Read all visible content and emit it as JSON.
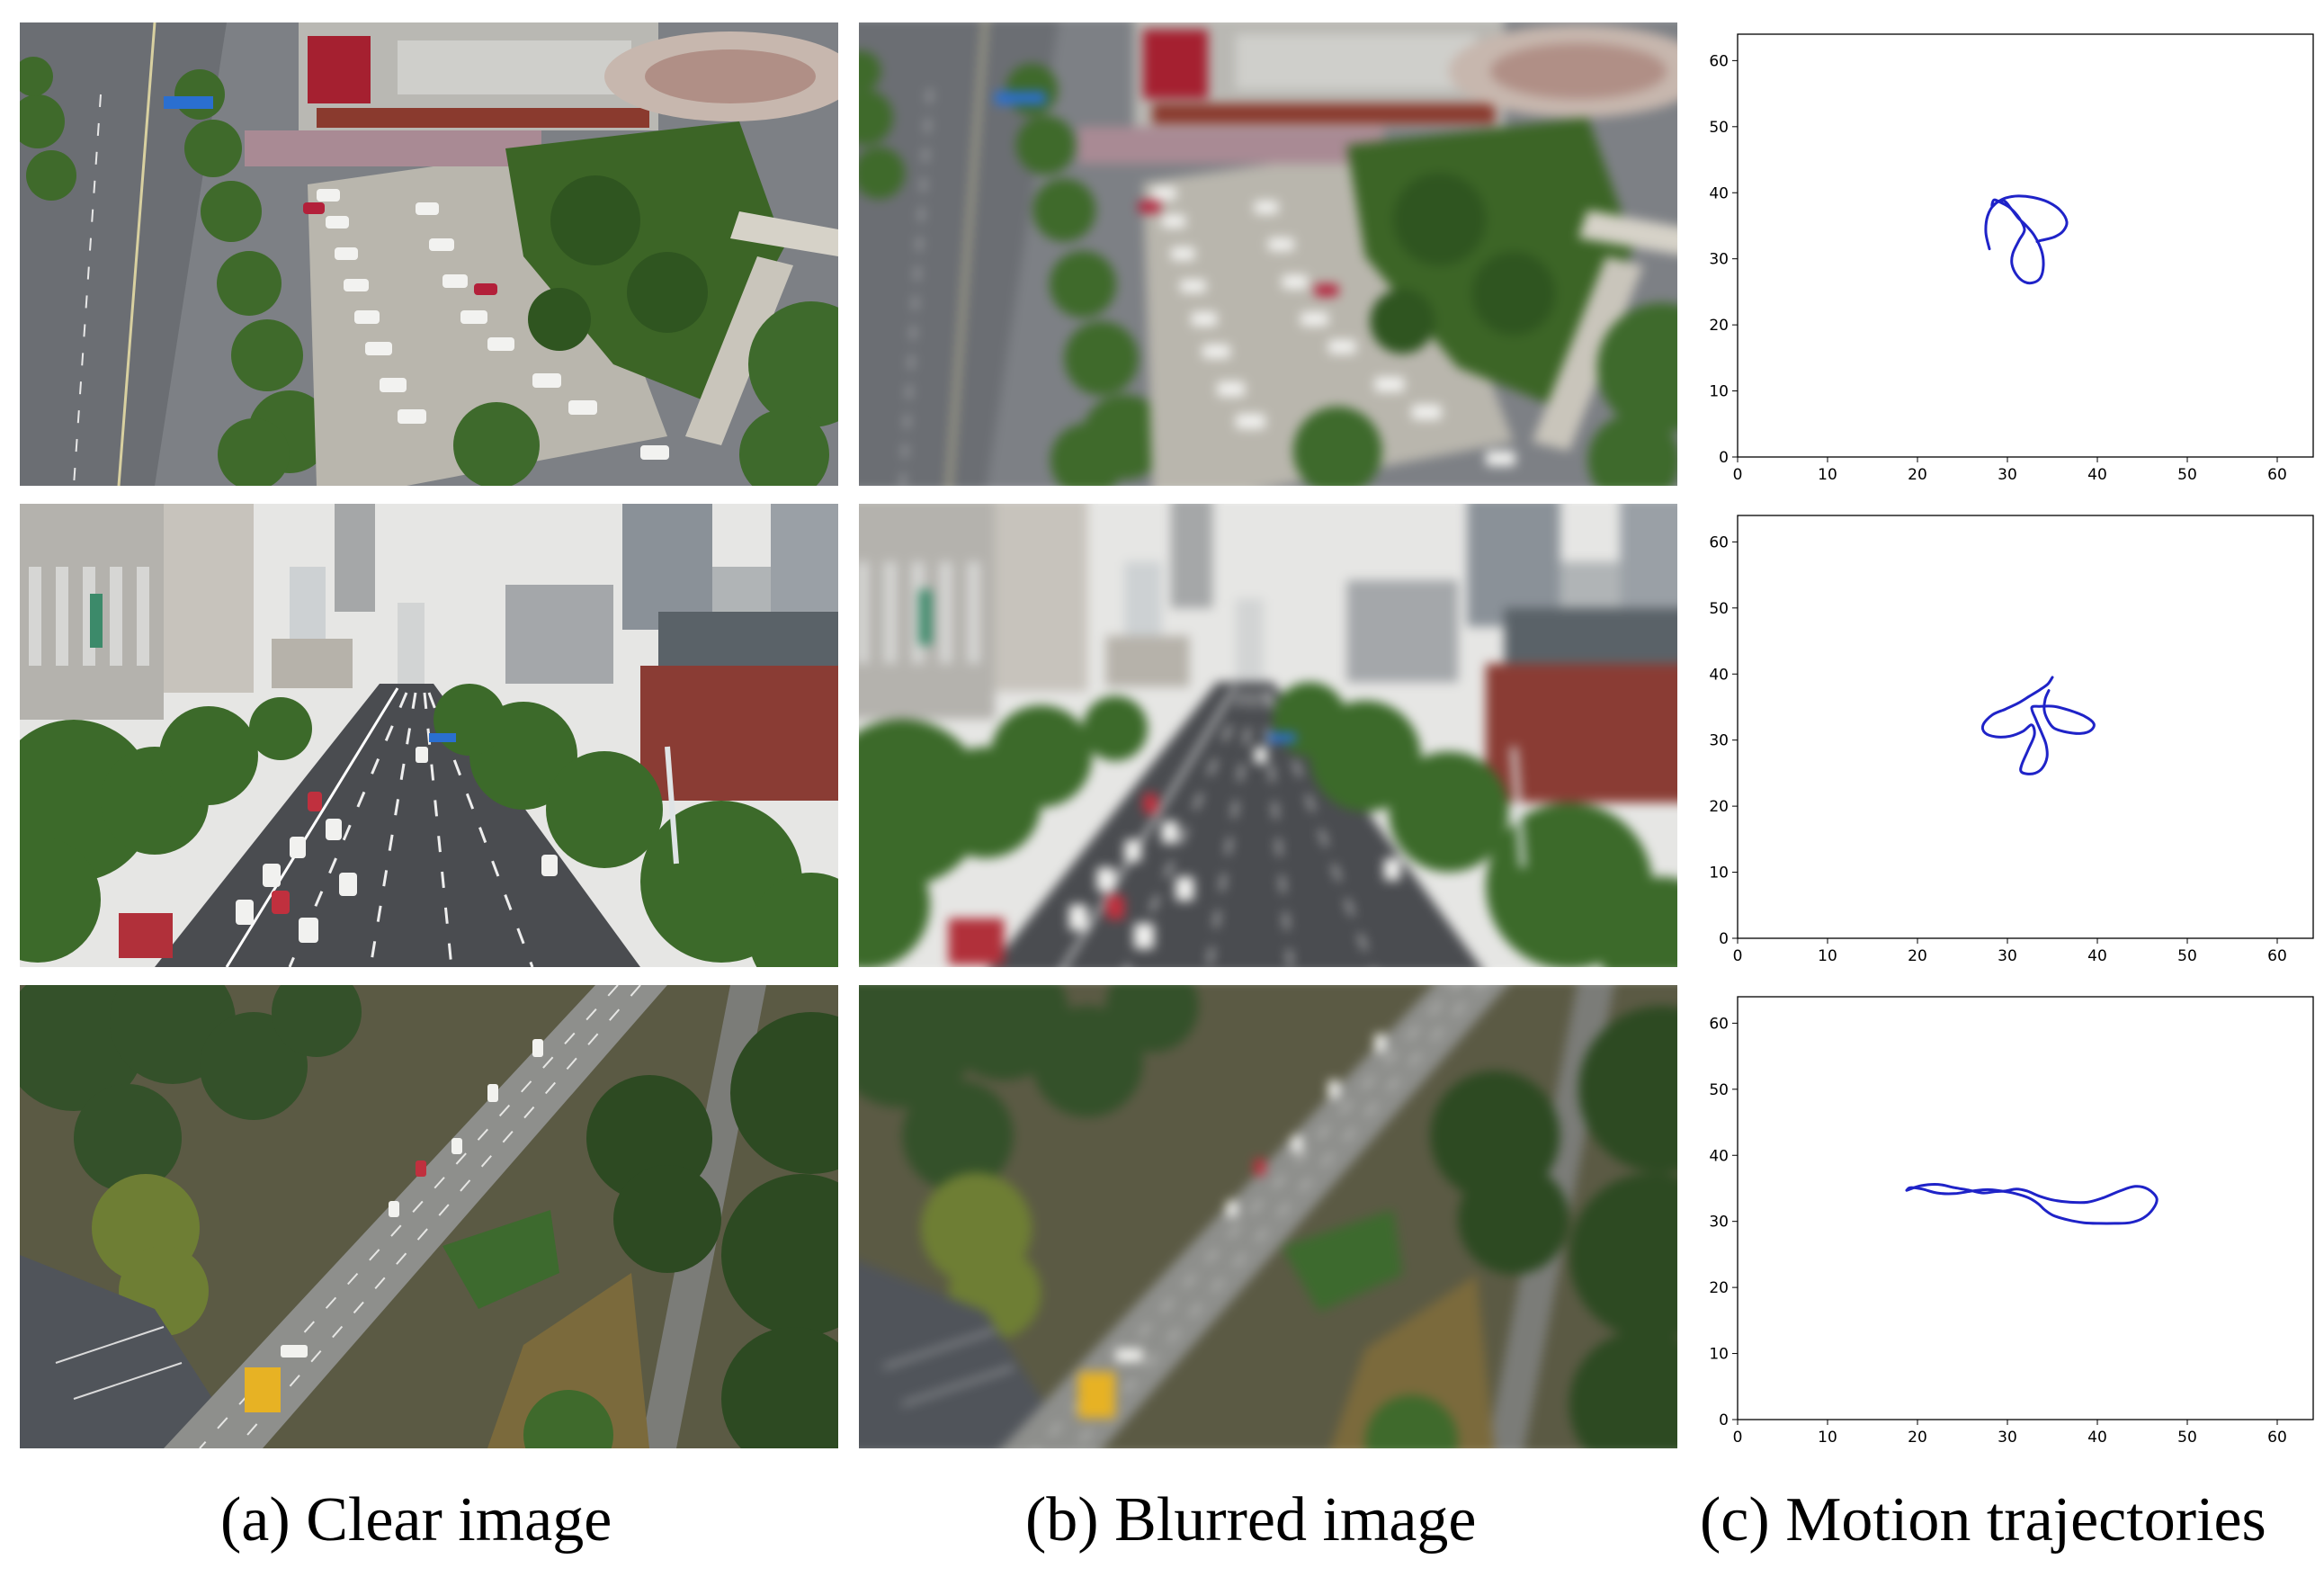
{
  "captions": {
    "a": "(a) Clear image",
    "b": "(b) Blurred image",
    "c": "(c) Motion trajectories"
  },
  "photos": {
    "rows": [
      {
        "scene": "aerial view of city street, shopping mall and parking lot"
      },
      {
        "scene": "aerial view of multi-lane boulevard between high-rise buildings"
      },
      {
        "scene": "aerial view of highway interchange among trees"
      }
    ]
  },
  "colors": {
    "trajectory": "#1f23c8",
    "tree": "#3e6a2c",
    "road": "#6f7378",
    "building": "#b8b8b4"
  },
  "chart_data": [
    {
      "type": "line",
      "xlim": [
        0,
        64
      ],
      "ylim": [
        0,
        64
      ],
      "xticks": [
        "0",
        "10",
        "20",
        "30",
        "40",
        "50",
        "60"
      ],
      "yticks": [
        "0",
        "10",
        "20",
        "30",
        "40",
        "50",
        "60"
      ],
      "grid": false,
      "series": [
        {
          "x": [
            28,
            27.6,
            27.8,
            28.6,
            29.6,
            30.4,
            31.2,
            32.1,
            33,
            33.8,
            34,
            33.7,
            32.9,
            31.9,
            31,
            30.5,
            30.6,
            31.3,
            31.9,
            31.3,
            30.3,
            29.3,
            28.5,
            28.3,
            28.8,
            29.8,
            31.2,
            32.8,
            34.5,
            35.9,
            36.6,
            36.2,
            35.2,
            33.8,
            33.3
          ],
          "y": [
            31.5,
            34,
            36.5,
            38.3,
            38.8,
            37.6,
            36.2,
            35,
            33.5,
            31.2,
            29,
            27.2,
            26.4,
            26.5,
            27.6,
            29.2,
            30.8,
            32.8,
            34.4,
            36.2,
            37.7,
            38.5,
            38.9,
            37.9,
            38.5,
            39.2,
            39.5,
            39.3,
            38.6,
            37.3,
            35.6,
            34.2,
            33.3,
            32.8,
            32.6
          ]
        }
      ]
    },
    {
      "type": "line",
      "xlim": [
        0,
        64
      ],
      "ylim": [
        0,
        64
      ],
      "xticks": [
        "0",
        "10",
        "20",
        "30",
        "40",
        "50",
        "60"
      ],
      "yticks": [
        "0",
        "10",
        "20",
        "30",
        "40",
        "50",
        "60"
      ],
      "grid": false,
      "series": [
        {
          "x": [
            35,
            34.5,
            33.6,
            32.4,
            31.2,
            29.8,
            28.3,
            27.3,
            27.5,
            28.7,
            30.3,
            31.7,
            32.7,
            33,
            32.3,
            31.6,
            31.5,
            32.1,
            33.1,
            33.9,
            34.4,
            34.3,
            33.8,
            33.2,
            32.7,
            33.6,
            35.2,
            36.9,
            38.6,
            39.6,
            39.3,
            38.2,
            36.6,
            35.2,
            34.5,
            34.1,
            34.2,
            34.6
          ],
          "y": [
            39.5,
            38.5,
            37.6,
            36.6,
            35.6,
            34.7,
            33.8,
            32.3,
            31.1,
            30.5,
            30.6,
            31.3,
            32.3,
            30.8,
            28.5,
            26.3,
            25.3,
            24.9,
            25,
            25.8,
            27.4,
            29.3,
            31.1,
            33,
            34.9,
            35.1,
            35.1,
            34.5,
            33.6,
            32.5,
            31.5,
            31,
            31.2,
            31.8,
            33,
            34.5,
            36.2,
            37.5
          ]
        }
      ]
    },
    {
      "type": "line",
      "xlim": [
        0,
        64
      ],
      "ylim": [
        0,
        64
      ],
      "xticks": [
        "0",
        "10",
        "20",
        "30",
        "40",
        "50",
        "60"
      ],
      "yticks": [
        "0",
        "10",
        "20",
        "30",
        "40",
        "50",
        "60"
      ],
      "grid": false,
      "series": [
        {
          "x": [
            18.8,
            20.4,
            22.3,
            24.1,
            25.8,
            27.3,
            28.6,
            29.8,
            31,
            32.2,
            33.6,
            35.2,
            37,
            38.9,
            40.7,
            42.5,
            44.2,
            45.6,
            46.6,
            46.2,
            45.1,
            43.6,
            41.9,
            40.2,
            38.5,
            36.8,
            35.1,
            34.1,
            33.4,
            32.3,
            30.9,
            29.3,
            27.8,
            26.1,
            24.1,
            22.2,
            20.5,
            19.2,
            18.8
          ],
          "y": [
            34.7,
            35.4,
            35.6,
            35.1,
            34.7,
            34.3,
            34.5,
            34.6,
            34.9,
            34.6,
            33.8,
            33.2,
            32.9,
            32.9,
            33.6,
            34.6,
            35.3,
            34.9,
            33.5,
            31.9,
            30.5,
            29.8,
            29.7,
            29.7,
            29.8,
            30.2,
            30.9,
            31.8,
            32.7,
            33.6,
            34.2,
            34.6,
            34.8,
            34.6,
            34.2,
            34.3,
            34.9,
            35.1,
            34.7
          ]
        }
      ]
    }
  ]
}
